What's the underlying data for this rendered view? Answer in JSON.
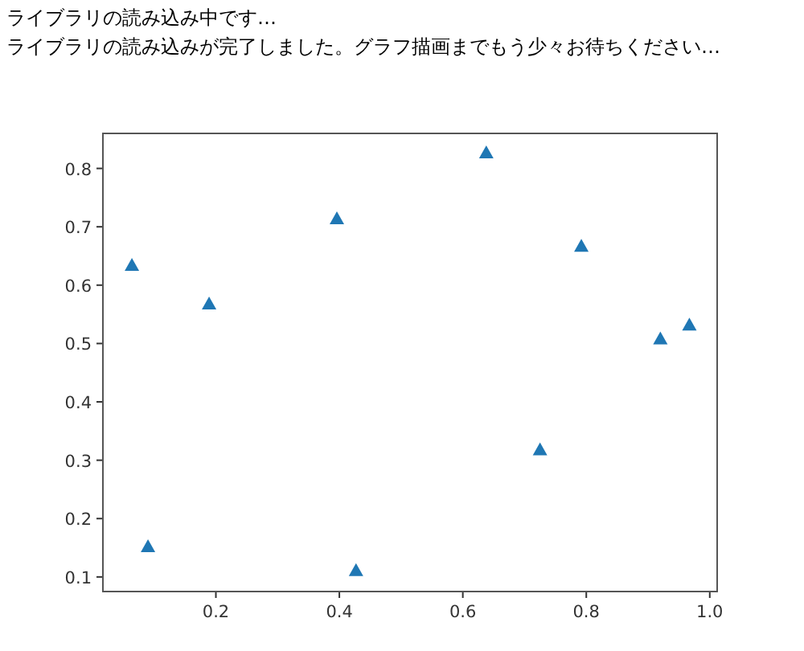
{
  "chart_data": {
    "type": "scatter",
    "annotations": [
      "ライブラリの読み込み中です…",
      "ライブラリの読み込みが完了しました。グラフ描画までもう少々お待ちください…"
    ],
    "x": [
      0.064,
      0.09,
      0.189,
      0.396,
      0.427,
      0.638,
      0.725,
      0.792,
      0.92,
      0.967
    ],
    "values": [
      0.634,
      0.152,
      0.568,
      0.714,
      0.111,
      0.827,
      0.318,
      0.667,
      0.508,
      0.532
    ],
    "color": "#1f77b4",
    "marker": "triangle",
    "xlim": [
      0.017,
      1.012
    ],
    "ylim": [
      0.075,
      0.86
    ],
    "xticks": [
      0.2,
      0.4,
      0.6,
      0.8,
      {
        "value": 1,
        "label": "1.0"
      }
    ],
    "yticks": [
      0.1,
      0.2,
      0.3,
      0.4,
      0.5,
      0.6,
      0.7,
      0.8
    ]
  }
}
